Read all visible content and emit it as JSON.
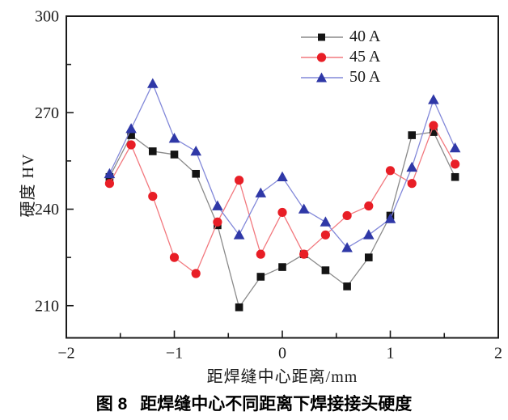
{
  "figure": {
    "caption_label": "图 8",
    "caption_text": "距焊缝中心不同距离下焊接接头硬度"
  },
  "chart_data": {
    "type": "line",
    "title": "",
    "xlabel": "距焊缝中心距离/mm",
    "ylabel": "硬度 HV",
    "xlim": [
      -2,
      2
    ],
    "ylim": [
      200,
      300
    ],
    "grid": false,
    "legend_position": "top-center-inside",
    "frame_color": "#1a1a1a",
    "tick_label_color": "#1a1a1a",
    "x_major_ticks": [
      {
        "v": -2,
        "label": "−2"
      },
      {
        "v": -1,
        "label": "−1"
      },
      {
        "v": 0,
        "label": "0"
      },
      {
        "v": 1,
        "label": "1"
      },
      {
        "v": 2,
        "label": "2"
      }
    ],
    "x_minor_ticks": [
      -1.5,
      -0.5,
      0.5,
      1.5
    ],
    "y_major_ticks": [
      {
        "v": 210,
        "label": "210"
      },
      {
        "v": 240,
        "label": "240"
      },
      {
        "v": 270,
        "label": "270"
      },
      {
        "v": 300,
        "label": "300"
      }
    ],
    "y_minor_ticks": [
      225,
      255,
      285
    ],
    "x": [
      -1.6,
      -1.4,
      -1.2,
      -1.0,
      -0.8,
      -0.6,
      -0.4,
      -0.2,
      0,
      0.2,
      0.4,
      0.6,
      0.8,
      1.0,
      1.2,
      1.4,
      1.6
    ],
    "series": [
      {
        "name": "40 A",
        "marker": "square",
        "color": "#141414",
        "line_color": "#8a8a8a",
        "values": [
          250,
          263,
          258,
          257,
          251,
          235,
          209.5,
          219,
          222,
          226,
          221,
          216,
          225,
          238,
          263,
          264,
          250
        ]
      },
      {
        "name": "45 A",
        "marker": "circle",
        "color": "#e81e26",
        "line_color": "#f2787e",
        "values": [
          248,
          260,
          244,
          225,
          220,
          236,
          249,
          226,
          239,
          226,
          232,
          238,
          241,
          252,
          248,
          266,
          254
        ]
      },
      {
        "name": "50 A",
        "marker": "triangle",
        "color": "#2f38a7",
        "line_color": "#8288d9",
        "values": [
          251,
          265,
          279,
          262,
          258,
          241,
          232,
          245,
          250,
          240,
          236,
          228,
          232,
          237,
          253,
          274,
          259
        ]
      }
    ]
  }
}
